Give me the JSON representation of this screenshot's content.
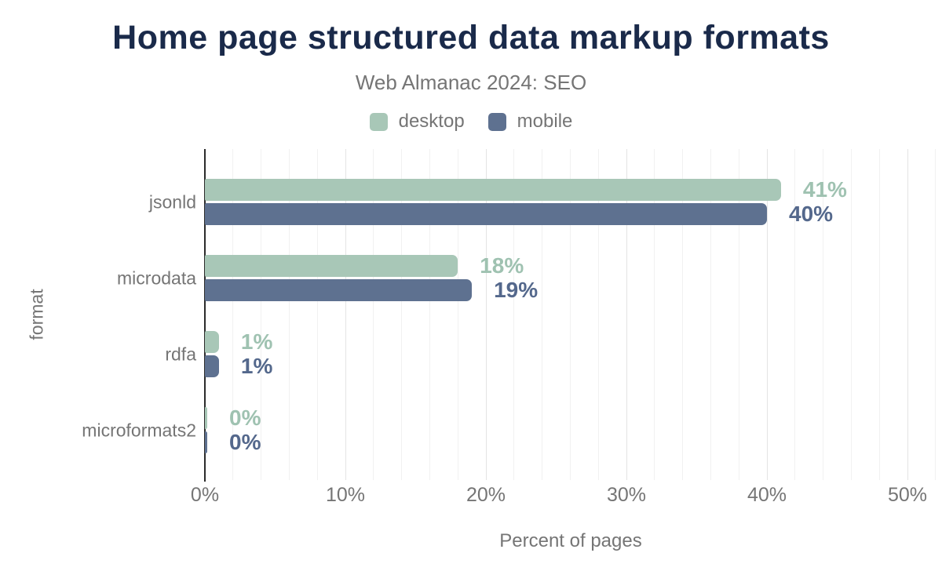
{
  "chart_data": {
    "type": "bar",
    "orientation": "horizontal",
    "title": "Home page structured data markup formats",
    "subtitle": "Web Almanac 2024: SEO",
    "xlabel": "Percent of pages",
    "ylabel": "format",
    "categories": [
      "jsonld",
      "microdata",
      "rdfa",
      "microformats2"
    ],
    "series": [
      {
        "name": "desktop",
        "values": [
          41,
          18,
          1,
          0
        ],
        "value_labels": [
          "41%",
          "18%",
          "1%",
          "0%"
        ],
        "color": "#a8c7b7",
        "label_color": "#9fc2b1"
      },
      {
        "name": "mobile",
        "values": [
          40,
          19,
          1,
          0
        ],
        "value_labels": [
          "40%",
          "19%",
          "1%",
          "0%"
        ],
        "color": "#5e7190",
        "label_color": "#54688c"
      }
    ],
    "xlim": [
      0,
      50
    ],
    "x_ticks": [
      {
        "pct": 0,
        "label": "0%"
      },
      {
        "pct": 10,
        "label": "10%"
      },
      {
        "pct": 20,
        "label": "20%"
      },
      {
        "pct": 30,
        "label": "30%"
      },
      {
        "pct": 40,
        "label": "40%"
      },
      {
        "pct": 50,
        "label": "50%"
      }
    ],
    "grid": {
      "horizontal": false,
      "minor_step_pct": 2,
      "major_step_pct": 10
    },
    "legend_position": "top"
  },
  "colors": {
    "background": "#ffffff",
    "title": "#1a2a4a",
    "muted_text": "#757575",
    "axis": "#2b2b2b",
    "grid_minor": "#f1f1f1",
    "grid_major": "#e4e4e4"
  }
}
